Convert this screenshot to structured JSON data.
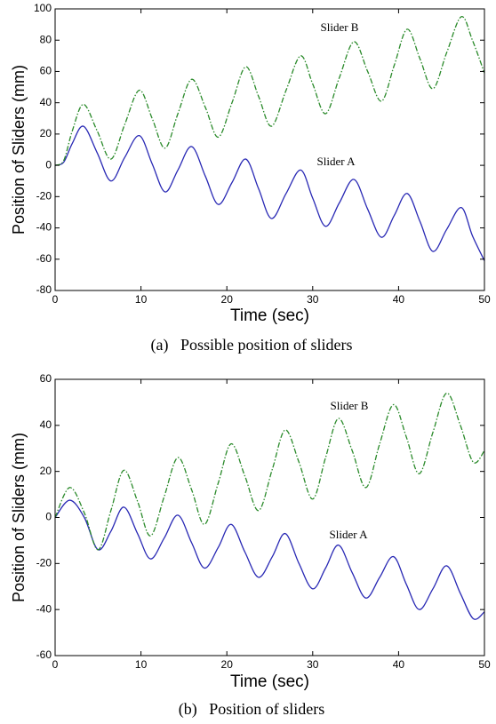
{
  "chart_data": [
    {
      "type": "line",
      "caption": "(a)   Possible position of sliders",
      "xlabel": "Time (sec)",
      "ylabel": "Position of Sliders (mm)",
      "x": [
        0,
        1,
        2,
        3.3,
        4.9,
        6.5,
        8.1,
        9.8,
        11.3,
        12.8,
        14.3,
        15.9,
        17.5,
        19,
        20.6,
        22.2,
        23.7,
        25.2,
        26.9,
        28.6,
        30,
        31.5,
        33.1,
        34.8,
        36.4,
        38,
        39.5,
        41,
        42.5,
        44,
        45.6,
        47.3,
        48.6,
        50
      ],
      "series": [
        {
          "name": "Slider A",
          "color": "#2828b4",
          "linestyle": "solid",
          "values": [
            0,
            2,
            14,
            25,
            8,
            -10,
            5,
            19,
            1,
            -17,
            -3,
            12,
            -7,
            -25,
            -11,
            4,
            -15,
            -34,
            -18,
            -3,
            -21,
            -39,
            -24,
            -9,
            -28,
            -46,
            -32,
            -18,
            -36,
            -55,
            -41,
            -27,
            -45,
            -61
          ]
        },
        {
          "name": "Slider B",
          "color": "#2a8a2a",
          "linestyle": "dash-dot",
          "values": [
            0,
            3,
            22,
            39,
            22,
            4,
            26,
            48,
            30,
            11,
            33,
            55,
            37,
            18,
            40,
            63,
            44,
            25,
            48,
            70,
            52,
            33,
            56,
            79,
            60,
            41,
            64,
            87,
            68,
            49,
            72,
            95,
            80,
            59
          ]
        }
      ],
      "xlim": [
        0,
        50
      ],
      "xticks": [
        0,
        10,
        20,
        30,
        40,
        50
      ],
      "ylim": [
        -80,
        100
      ],
      "yticks": [
        -80,
        -60,
        -40,
        -20,
        0,
        20,
        40,
        60,
        80,
        100
      ],
      "grid": false
    },
    {
      "type": "line",
      "caption": "(b)   Position of sliders",
      "xlabel": "Time (sec)",
      "ylabel": "Position of Sliders (mm)",
      "x": [
        0,
        1.7,
        3.4,
        5,
        6.5,
        8,
        9.6,
        11.1,
        12.7,
        14.3,
        15.9,
        17.4,
        19,
        20.5,
        22.1,
        23.7,
        25.3,
        26.8,
        28.4,
        30,
        31.5,
        33,
        34.6,
        36.2,
        37.8,
        39.4,
        40.9,
        42.4,
        44,
        45.6,
        47.2,
        48.7,
        50
      ],
      "series": [
        {
          "name": "Slider A",
          "color": "#2828b4",
          "linestyle": "solid",
          "values": [
            0,
            7.5,
            0,
            -14,
            -6,
            4.5,
            -7,
            -18,
            -9,
            1,
            -11,
            -22,
            -13,
            -3,
            -15,
            -26,
            -17,
            -7,
            -20,
            -31,
            -22,
            -12,
            -24,
            -35,
            -26,
            -17,
            -29,
            -40,
            -31,
            -21,
            -33,
            -44,
            -41
          ]
        },
        {
          "name": "Slider B",
          "color": "#2a8a2a",
          "linestyle": "dash-dot",
          "values": [
            0,
            13,
            2,
            -14,
            3,
            20.5,
            7,
            -8,
            9,
            26,
            12,
            -3,
            15,
            32,
            18,
            3,
            21,
            38,
            24,
            8,
            26,
            43,
            29,
            13,
            32,
            49,
            35,
            19,
            37,
            54,
            40,
            24,
            29
          ]
        }
      ],
      "xlim": [
        0,
        50
      ],
      "xticks": [
        0,
        10,
        20,
        30,
        40,
        50
      ],
      "ylim": [
        -60,
        60
      ],
      "yticks": [
        -60,
        -40,
        -20,
        0,
        20,
        40,
        60
      ],
      "grid": false
    }
  ]
}
